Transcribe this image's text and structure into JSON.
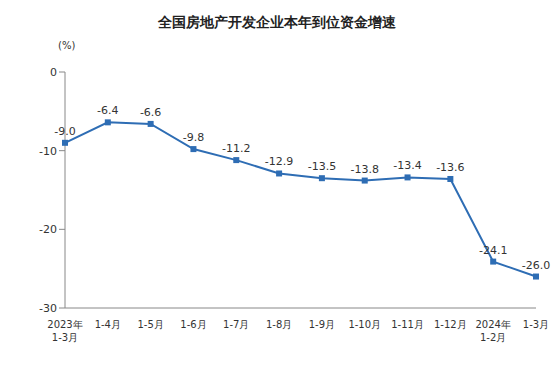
{
  "chart_data": {
    "type": "line",
    "title": "全国房地产开发企业本年到位资金增速",
    "y_label": "(%)",
    "categories": [
      "2023年1-3月",
      "1-4月",
      "1-5月",
      "1-6月",
      "1-7月",
      "1-8月",
      "1-9月",
      "1-10月",
      "1-11月",
      "1-12月",
      "2024年1-2月",
      "1-3月"
    ],
    "values": [
      -9.0,
      -6.4,
      -6.6,
      -9.8,
      -11.2,
      -12.9,
      -13.5,
      -13.8,
      -13.4,
      -13.6,
      -24.1,
      -26.0
    ],
    "value_labels": [
      "-9.0",
      "-6.4",
      "-6.6",
      "-9.8",
      "-11.2",
      "-12.9",
      "-13.5",
      "-13.8",
      "-13.4",
      "-13.6",
      "-24.1",
      "-26.0"
    ],
    "color": "#2e6db4",
    "marker": "square",
    "ylim": [
      -30,
      0
    ],
    "yticks": [
      0,
      -10,
      -20,
      -30
    ],
    "grid": false,
    "data_labels": true
  }
}
